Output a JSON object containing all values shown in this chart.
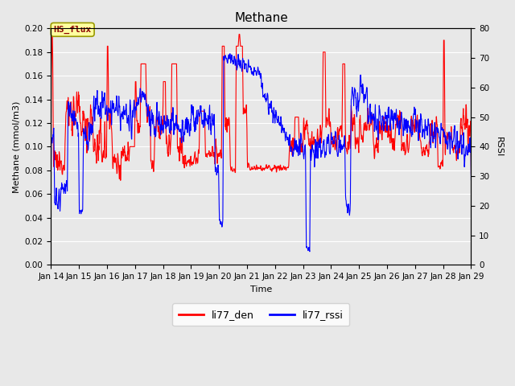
{
  "title": "Methane",
  "ylabel_left": "Methane (mmol/m3)",
  "ylabel_right": "RSSI",
  "xlabel": "Time",
  "ylim_left": [
    0.0,
    0.2
  ],
  "ylim_right": [
    0,
    80
  ],
  "yticks_left": [
    0.0,
    0.02,
    0.04,
    0.06,
    0.08,
    0.1,
    0.12,
    0.14,
    0.16,
    0.18,
    0.2
  ],
  "yticks_right": [
    0,
    10,
    20,
    30,
    40,
    50,
    60,
    70,
    80
  ],
  "xtick_labels": [
    "Jan 14",
    "Jan 15",
    "Jan 16",
    "Jan 17",
    "Jan 18",
    "Jan 19",
    "Jan 20",
    "Jan 21",
    "Jan 22",
    "Jan 23",
    "Jan 24",
    "Jan 25",
    "Jan 26",
    "Jan 27",
    "Jan 28",
    "Jan 29"
  ],
  "color_red": "#FF0000",
  "color_blue": "#0000FF",
  "legend_entries": [
    "li77_den",
    "li77_rssi"
  ],
  "annotation_text": "HS_flux",
  "background_color": "#E8E8E8",
  "grid_color": "#FFFFFF",
  "title_fontsize": 11,
  "label_fontsize": 8,
  "tick_fontsize": 7.5
}
